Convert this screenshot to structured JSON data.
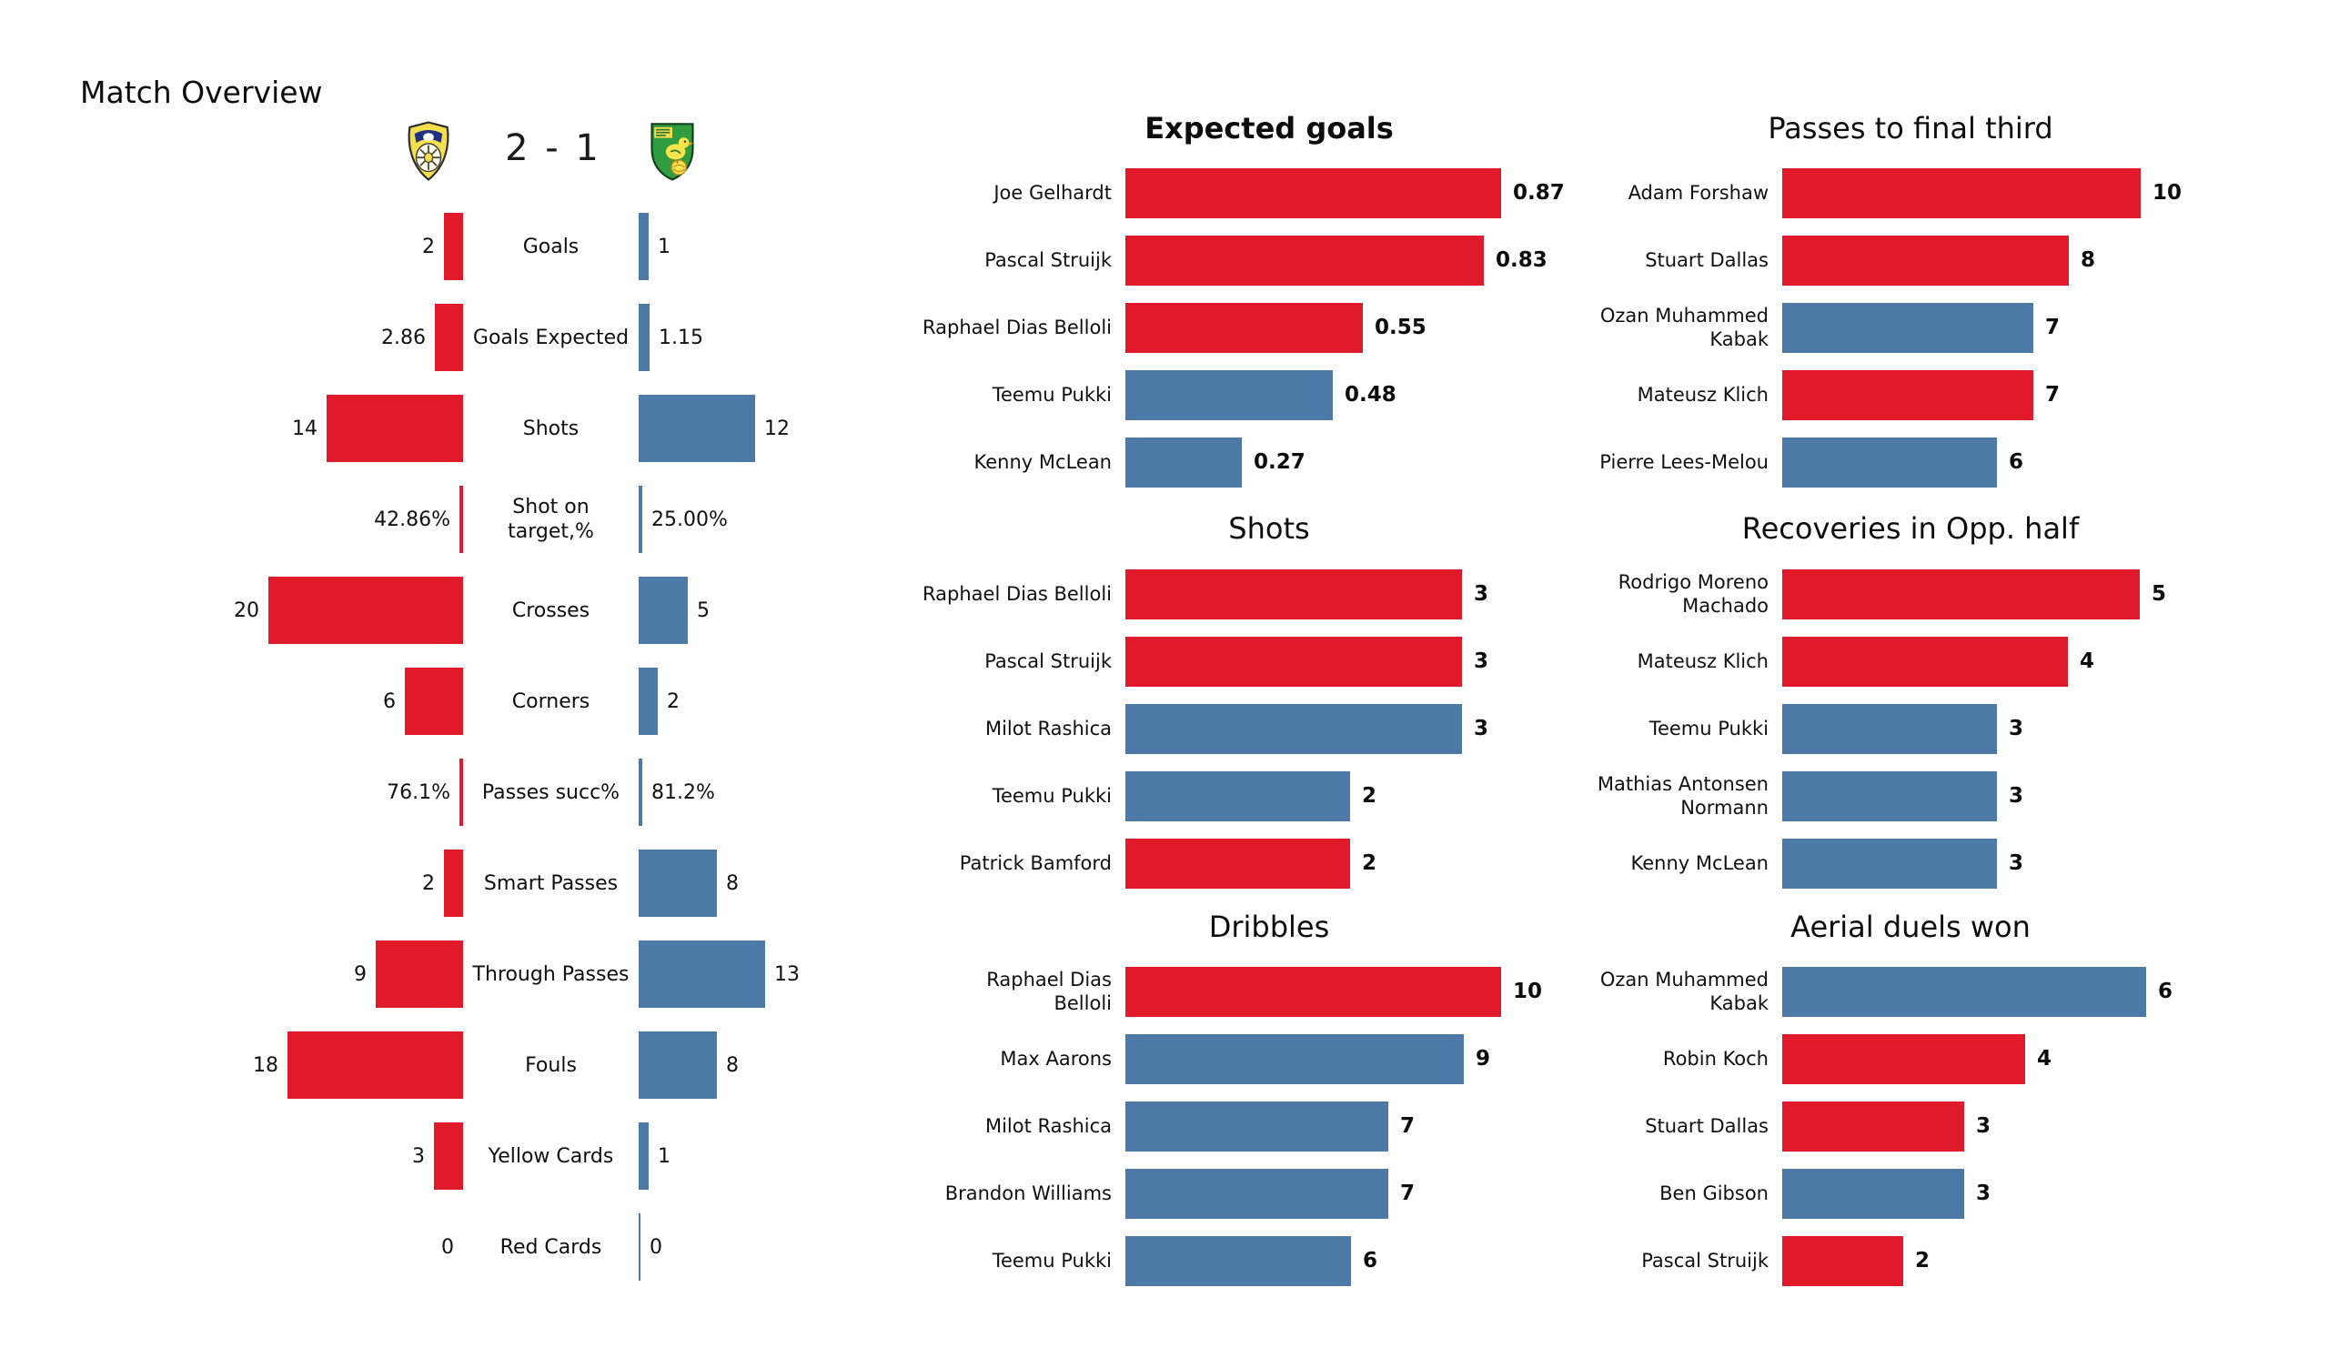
{
  "header": {
    "title": "Match Overview",
    "score": "2 - 1",
    "home_color": "#e01a2b",
    "away_color": "#4d79a6",
    "home_badge": "leeds-united-crest",
    "away_badge": "norwich-city-crest"
  },
  "chart_data": [
    {
      "id": "match-overview-comparison",
      "type": "bar",
      "title": "Match Overview",
      "score": "2 - 1",
      "legend_position": "none",
      "grid": false,
      "rows": [
        {
          "label": "Goals",
          "home": 2,
          "away": 1,
          "home_display": "2",
          "away_display": "1",
          "unit": "count"
        },
        {
          "label": "Goals Expected",
          "home": 2.86,
          "away": 1.15,
          "home_display": "2.86",
          "away_display": "1.15",
          "unit": "count"
        },
        {
          "label": "Shots",
          "home": 14,
          "away": 12,
          "home_display": "14",
          "away_display": "12",
          "unit": "count"
        },
        {
          "label": "Shot on\ntarget,%",
          "home": 42.86,
          "away": 25.0,
          "home_display": "42.86%",
          "away_display": "25.00%",
          "unit": "percent"
        },
        {
          "label": "Crosses",
          "home": 20,
          "away": 5,
          "home_display": "20",
          "away_display": "5",
          "unit": "count"
        },
        {
          "label": "Corners",
          "home": 6,
          "away": 2,
          "home_display": "6",
          "away_display": "2",
          "unit": "count"
        },
        {
          "label": "Passes succ%",
          "home": 76.1,
          "away": 81.2,
          "home_display": "76.1%",
          "away_display": "81.2%",
          "unit": "percent"
        },
        {
          "label": "Smart Passes",
          "home": 2,
          "away": 8,
          "home_display": "2",
          "away_display": "8",
          "unit": "count"
        },
        {
          "label": "Through Passes",
          "home": 9,
          "away": 13,
          "home_display": "9",
          "away_display": "13",
          "unit": "count"
        },
        {
          "label": "Fouls",
          "home": 18,
          "away": 8,
          "home_display": "18",
          "away_display": "8",
          "unit": "count"
        },
        {
          "label": "Yellow Cards",
          "home": 3,
          "away": 1,
          "home_display": "3",
          "away_display": "1",
          "unit": "count"
        },
        {
          "label": "Red Cards",
          "home": 0,
          "away": 0,
          "home_display": "0",
          "away_display": "0",
          "unit": "count"
        }
      ]
    },
    {
      "id": "expected-goals",
      "type": "bar",
      "title": "Expected goals",
      "bars": [
        {
          "label": "Joe Gelhardt",
          "value": 0.87,
          "display": "0.87",
          "team": "home"
        },
        {
          "label": "Pascal Struijk",
          "value": 0.83,
          "display": "0.83",
          "team": "home"
        },
        {
          "label": "Raphael Dias Belloli",
          "value": 0.55,
          "display": "0.55",
          "team": "home"
        },
        {
          "label": "Teemu Pukki",
          "value": 0.48,
          "display": "0.48",
          "team": "away"
        },
        {
          "label": "Kenny McLean",
          "value": 0.27,
          "display": "0.27",
          "team": "away"
        }
      ]
    },
    {
      "id": "passes-to-final-third",
      "type": "bar",
      "title": "Passes to final third",
      "bars": [
        {
          "label": "Adam Forshaw",
          "value": 10,
          "display": "10",
          "team": "home"
        },
        {
          "label": "Stuart Dallas",
          "value": 8,
          "display": "8",
          "team": "home"
        },
        {
          "label": "Ozan Muhammed\nKabak",
          "value": 7,
          "display": "7",
          "team": "away"
        },
        {
          "label": "Mateusz Klich",
          "value": 7,
          "display": "7",
          "team": "home"
        },
        {
          "label": "Pierre Lees-Melou",
          "value": 6,
          "display": "6",
          "team": "away"
        }
      ]
    },
    {
      "id": "shots",
      "type": "bar",
      "title": "Shots",
      "bars": [
        {
          "label": "Raphael Dias Belloli",
          "value": 3,
          "display": "3",
          "team": "home"
        },
        {
          "label": "Pascal Struijk",
          "value": 3,
          "display": "3",
          "team": "home"
        },
        {
          "label": "Milot Rashica",
          "value": 3,
          "display": "3",
          "team": "away"
        },
        {
          "label": "Teemu Pukki",
          "value": 2,
          "display": "2",
          "team": "away"
        },
        {
          "label": "Patrick Bamford",
          "value": 2,
          "display": "2",
          "team": "home"
        }
      ]
    },
    {
      "id": "recoveries-in-opp-half",
      "type": "bar",
      "title": "Recoveries in Opp. half",
      "bars": [
        {
          "label": "Rodrigo Moreno\nMachado",
          "value": 5,
          "display": "5",
          "team": "home"
        },
        {
          "label": "Mateusz Klich",
          "value": 4,
          "display": "4",
          "team": "home"
        },
        {
          "label": "Teemu Pukki",
          "value": 3,
          "display": "3",
          "team": "away"
        },
        {
          "label": "Mathias  Antonsen\nNormann",
          "value": 3,
          "display": "3",
          "team": "away"
        },
        {
          "label": "Kenny McLean",
          "value": 3,
          "display": "3",
          "team": "away"
        }
      ]
    },
    {
      "id": "dribbles",
      "type": "bar",
      "title": "Dribbles",
      "bars": [
        {
          "label": "Raphael Dias\nBelloli",
          "value": 10,
          "display": "10",
          "team": "home"
        },
        {
          "label": "Max Aarons",
          "value": 9,
          "display": "9",
          "team": "away"
        },
        {
          "label": "Milot Rashica",
          "value": 7,
          "display": "7",
          "team": "away"
        },
        {
          "label": "Brandon Williams",
          "value": 7,
          "display": "7",
          "team": "away"
        },
        {
          "label": "Teemu Pukki",
          "value": 6,
          "display": "6",
          "team": "away"
        }
      ]
    },
    {
      "id": "aerial-duels-won",
      "type": "bar",
      "title": "Aerial duels won",
      "bars": [
        {
          "label": "Ozan Muhammed\nKabak",
          "value": 6,
          "display": "6",
          "team": "away"
        },
        {
          "label": "Robin Koch",
          "value": 4,
          "display": "4",
          "team": "home"
        },
        {
          "label": "Stuart Dallas",
          "value": 3,
          "display": "3",
          "team": "home"
        },
        {
          "label": "Ben Gibson",
          "value": 3,
          "display": "3",
          "team": "away"
        },
        {
          "label": "Pascal Struijk",
          "value": 2,
          "display": "2",
          "team": "home"
        }
      ]
    }
  ]
}
